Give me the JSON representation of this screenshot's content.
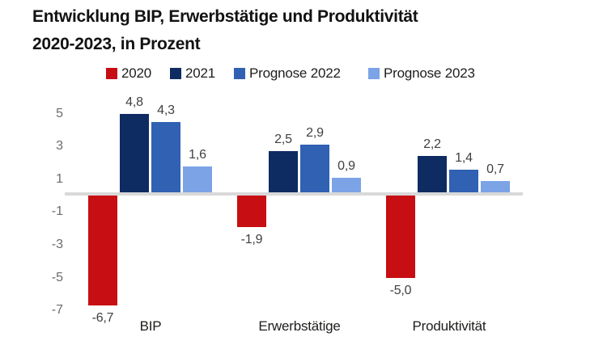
{
  "title": {
    "line1": "Entwicklung BIP, Erwerbstätige und Produktivität",
    "line2": "2020-2023, in Prozent"
  },
  "colors": {
    "series_2020": "#c70e12",
    "series_2021": "#0e2c62",
    "series_prognose_2022": "#3061b3",
    "series_prognose_2023": "#7ba3e6",
    "baseline": "#d9d9d9",
    "tick_text": "#6b6b6b",
    "value_text": "#404040",
    "background": "#ffffff"
  },
  "chart_data": {
    "type": "bar",
    "title": "Entwicklung BIP, Erwerbstätige und Produktivität 2020-2023, in Prozent",
    "categories": [
      "BIP",
      "Erwerbstätige",
      "Produktivität"
    ],
    "series": [
      {
        "name": "2020",
        "color": "#c70e12",
        "values": [
          -6.7,
          -1.9,
          -5.0
        ]
      },
      {
        "name": "2021",
        "color": "#0e2c62",
        "values": [
          4.8,
          2.5,
          2.2
        ]
      },
      {
        "name": "Prognose 2022",
        "color": "#3061b3",
        "values": [
          4.3,
          2.9,
          1.4
        ]
      },
      {
        "name": "Prognose 2023",
        "color": "#7ba3e6",
        "values": [
          1.6,
          0.9,
          0.7
        ]
      }
    ],
    "value_labels": [
      [
        "-6,7",
        "-1,9",
        "-5,0"
      ],
      [
        "4,8",
        "2,5",
        "2,2"
      ],
      [
        "4,3",
        "2,9",
        "1,4"
      ],
      [
        "1,6",
        "0,9",
        "0,7"
      ]
    ],
    "yticks": [
      5,
      3,
      1,
      -1,
      -3,
      -5,
      -7
    ],
    "ylim": [
      -7.5,
      5.5
    ],
    "xlabel": "",
    "ylabel": "",
    "grid": false,
    "legend_position": "top",
    "decimal_separator": ","
  }
}
